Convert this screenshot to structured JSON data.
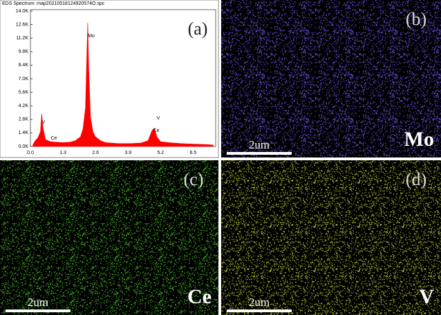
{
  "chart_data": {
    "type": "area",
    "title": "EDS Spectrum: map20210518124920574O.spc",
    "panel_label": "(a)",
    "color": "#ff0000",
    "x": [
      0.1,
      0.2,
      0.3,
      0.4,
      0.45,
      0.5,
      0.6,
      0.8,
      1.0,
      1.3,
      1.6,
      1.8,
      2.0,
      2.1,
      2.2,
      2.25,
      2.29,
      2.33,
      2.4,
      2.5,
      2.6,
      2.8,
      3.0,
      3.5,
      4.0,
      4.4,
      4.7,
      4.85,
      4.95,
      5.05,
      5.2,
      5.5,
      6.0,
      6.5,
      7.0,
      7.3
    ],
    "values": [
      200,
      600,
      900,
      1500,
      3400,
      2000,
      700,
      500,
      450,
      400,
      450,
      600,
      1000,
      1800,
      4000,
      9000,
      12800,
      8000,
      3000,
      1500,
      1000,
      600,
      400,
      300,
      300,
      350,
      600,
      1600,
      1900,
      1000,
      500,
      400,
      300,
      250,
      200,
      150
    ],
    "xlim": [
      0,
      7.4
    ],
    "ylim": [
      0,
      14000
    ],
    "xticks": [
      {
        "value": 0,
        "label": "0.0"
      },
      1.3,
      2.6,
      3.9,
      5.2,
      6.5
    ],
    "yticks": [
      {
        "value": 0,
        "label": "0.0K"
      },
      {
        "value": 1400,
        "label": "1.4K"
      },
      {
        "value": 2800,
        "label": "2.8K"
      },
      {
        "value": 4200,
        "label": "4.2K"
      },
      {
        "value": 5600,
        "label": "5.6K"
      },
      {
        "value": 7000,
        "label": "7.0K"
      },
      {
        "value": 8400,
        "label": "8.4K"
      },
      {
        "value": 9800,
        "label": "9.8K"
      },
      {
        "value": 11200,
        "label": "11.2K"
      },
      {
        "value": 12600,
        "label": "12.6K"
      },
      {
        "value": 14000,
        "label": "14.0K"
      }
    ],
    "annotations": [
      "V",
      "Ce",
      "Mo",
      "V",
      "Ce"
    ]
  },
  "maps": [
    {
      "label": "(b)",
      "element": "Mo",
      "scale": "2um",
      "color": "#7a5cff"
    },
    {
      "label": "(c)",
      "element": "Ce",
      "scale": "2um",
      "color": "#4fc22c"
    },
    {
      "label": "(d)",
      "element": "V",
      "scale": "2um",
      "color": "#c9d43a"
    }
  ]
}
